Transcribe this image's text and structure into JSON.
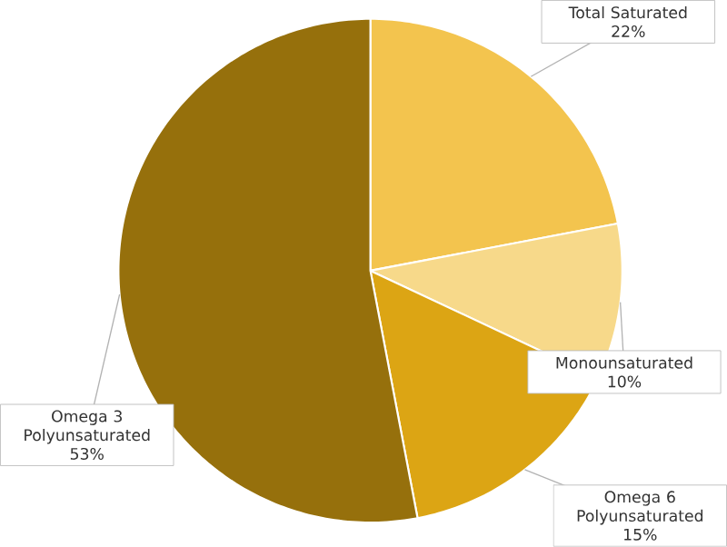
{
  "chart_data": {
    "type": "pie",
    "categories": [
      "Total Saturated",
      "Monounsaturated",
      "Omega 6 Polyunsaturated",
      "Omega 3 Polyunsaturated"
    ],
    "values": [
      22,
      10,
      15,
      53
    ],
    "value_labels": [
      "22%",
      "10%",
      "15%",
      "53%"
    ],
    "colors": [
      "#f3c44e",
      "#f7d98a",
      "#dca514",
      "#96700c"
    ]
  }
}
